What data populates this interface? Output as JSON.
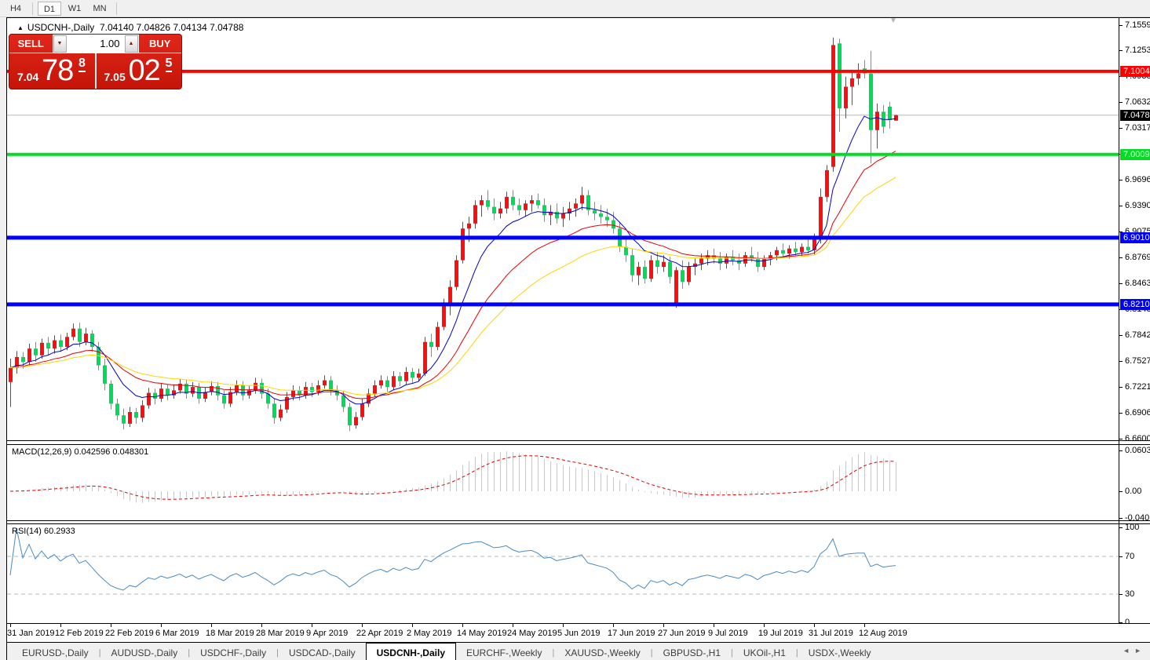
{
  "toolbar": {
    "timeframes": [
      {
        "label": "H4",
        "active": false
      },
      {
        "label": "D1",
        "active": true
      },
      {
        "label": "W1",
        "active": false
      },
      {
        "label": "MN",
        "active": false
      }
    ]
  },
  "chart": {
    "expand_icon": "▲",
    "symbol_title": "USDCNH-,Daily",
    "ohlc_text": "7.04140 7.04826 7.04134 7.04788",
    "scroll_marker": "▼",
    "quote": {
      "sell_label": "SELL",
      "buy_label": "BUY",
      "volume_value": "1.00",
      "spin_down_icon": "▼",
      "spin_up_icon": "▲",
      "sell_price_small": "7.04",
      "sell_price_big": "78",
      "sell_price_sup": "8",
      "buy_price_small": "7.05",
      "buy_price_big": "02",
      "buy_price_sup": "5"
    }
  },
  "indicators": {
    "macd_label": "MACD(12,26,9) 0.042596 0.048301",
    "rsi_label": "RSI(14) 60.2933"
  },
  "chart_data": {
    "type": "candlestick",
    "symbol": "USDCNH",
    "timeframe": "Daily",
    "y_range": {
      "top": 7.1559,
      "bottom": 6.66
    },
    "bull_color": "#fd0e0e",
    "bear_color": "#00dc5a",
    "current_price": 7.04788,
    "current_price_line_color": "#b8b8b8",
    "price_axis_ticks": [
      "7.15590",
      "7.12530",
      "7.09380",
      "7.06320",
      "7.03170",
      "7.00110",
      "6.96960",
      "6.93900",
      "6.90750",
      "6.87690",
      "6.84630",
      "6.81480",
      "6.78420",
      "6.75270",
      "6.72210",
      "6.69060",
      "6.66000"
    ],
    "price_badges": [
      {
        "value": 7.10044,
        "text": "7.10044",
        "bg": "#ff0000",
        "fg": "#ffffff"
      },
      {
        "value": 7.04788,
        "text": "7.04788",
        "bg": "#000000",
        "fg": "#ffffff"
      },
      {
        "value": 7.00092,
        "text": "7.00092",
        "bg": "#00dd22",
        "fg": "#ffffff"
      },
      {
        "value": 6.901,
        "text": "6.90100",
        "bg": "#0000ff",
        "fg": "#ffffff"
      },
      {
        "value": 6.82103,
        "text": "6.82103",
        "bg": "#0000ff",
        "fg": "#ffffff"
      }
    ],
    "levels": [
      {
        "price": 7.10044,
        "color": "#ff0000",
        "width": 4
      },
      {
        "price": 7.00092,
        "color": "#00dd22",
        "width": 4
      },
      {
        "price": 6.901,
        "color": "#0000ff",
        "width": 5
      },
      {
        "price": 6.82103,
        "color": "#0000ff",
        "width": 5
      }
    ],
    "moving_averages": [
      {
        "period": 9,
        "color": "#0000cd"
      },
      {
        "period": 21,
        "color": "#e60000"
      },
      {
        "period": 34,
        "color": "#ffd500"
      }
    ],
    "x_labels": [
      {
        "bar": 0,
        "text": "31 Jan 2019"
      },
      {
        "bar": 8,
        "text": "12 Feb 2019"
      },
      {
        "bar": 16,
        "text": "22 Feb 2019"
      },
      {
        "bar": 24,
        "text": "6 Mar 2019"
      },
      {
        "bar": 32,
        "text": "18 Mar 2019"
      },
      {
        "bar": 40,
        "text": "28 Mar 2019"
      },
      {
        "bar": 48,
        "text": "9 Apr 2019"
      },
      {
        "bar": 56,
        "text": "22 Apr 2019"
      },
      {
        "bar": 64,
        "text": "2 May 2019"
      },
      {
        "bar": 72,
        "text": "14 May 2019"
      },
      {
        "bar": 80,
        "text": "24 May 2019"
      },
      {
        "bar": 88,
        "text": "5 Jun 2019"
      },
      {
        "bar": 96,
        "text": "17 Jun 2019"
      },
      {
        "bar": 104,
        "text": "27 Jun 2019"
      },
      {
        "bar": 112,
        "text": "9 Jul 2019"
      },
      {
        "bar": 120,
        "text": "19 Jul 2019"
      },
      {
        "bar": 128,
        "text": "31 Jul 2019"
      },
      {
        "bar": 136,
        "text": "12 Aug 2019"
      }
    ],
    "ohlc": [
      [
        6.728,
        6.756,
        6.698,
        6.745
      ],
      [
        6.745,
        6.765,
        6.738,
        6.758
      ],
      [
        6.758,
        6.764,
        6.744,
        6.752
      ],
      [
        6.752,
        6.774,
        6.748,
        6.768
      ],
      [
        6.768,
        6.776,
        6.752,
        6.76
      ],
      [
        6.76,
        6.78,
        6.756,
        6.775
      ],
      [
        6.775,
        6.782,
        6.76,
        6.768
      ],
      [
        6.768,
        6.784,
        6.762,
        6.778
      ],
      [
        6.778,
        6.785,
        6.764,
        6.77
      ],
      [
        6.77,
        6.787,
        6.766,
        6.782
      ],
      [
        6.782,
        6.798,
        6.778,
        6.792
      ],
      [
        6.792,
        6.799,
        6.77,
        6.776
      ],
      [
        6.776,
        6.793,
        6.772,
        6.786
      ],
      [
        6.786,
        6.79,
        6.764,
        6.77
      ],
      [
        6.77,
        6.776,
        6.742,
        6.748
      ],
      [
        6.748,
        6.756,
        6.718,
        6.726
      ],
      [
        6.726,
        6.73,
        6.695,
        6.702
      ],
      [
        6.702,
        6.708,
        6.682,
        6.688
      ],
      [
        6.688,
        6.696,
        6.671,
        6.678
      ],
      [
        6.678,
        6.698,
        6.674,
        6.692
      ],
      [
        6.692,
        6.697,
        6.678,
        6.685
      ],
      [
        6.685,
        6.706,
        6.68,
        6.7
      ],
      [
        6.7,
        6.721,
        6.696,
        6.715
      ],
      [
        6.715,
        6.72,
        6.701,
        6.708
      ],
      [
        6.708,
        6.726,
        6.704,
        6.72
      ],
      [
        6.72,
        6.725,
        6.706,
        6.712
      ],
      [
        6.712,
        6.724,
        6.708,
        6.718
      ],
      [
        6.718,
        6.732,
        6.714,
        6.726
      ],
      [
        6.726,
        6.731,
        6.708,
        6.714
      ],
      [
        6.714,
        6.728,
        6.71,
        6.722
      ],
      [
        6.722,
        6.727,
        6.702,
        6.708
      ],
      [
        6.708,
        6.722,
        6.704,
        6.716
      ],
      [
        6.716,
        6.729,
        6.712,
        6.723
      ],
      [
        6.723,
        6.728,
        6.706,
        6.712
      ],
      [
        6.712,
        6.718,
        6.696,
        6.702
      ],
      [
        6.702,
        6.722,
        6.698,
        6.716
      ],
      [
        6.716,
        6.73,
        6.712,
        6.724
      ],
      [
        6.724,
        6.729,
        6.706,
        6.712
      ],
      [
        6.712,
        6.724,
        6.708,
        6.718
      ],
      [
        6.718,
        6.733,
        6.714,
        6.727
      ],
      [
        6.727,
        6.732,
        6.708,
        6.714
      ],
      [
        6.714,
        6.72,
        6.696,
        6.702
      ],
      [
        6.702,
        6.708,
        6.678,
        6.685
      ],
      [
        6.685,
        6.701,
        6.681,
        6.695
      ],
      [
        6.695,
        6.716,
        6.691,
        6.71
      ],
      [
        6.71,
        6.724,
        6.706,
        6.718
      ],
      [
        6.718,
        6.723,
        6.706,
        6.712
      ],
      [
        6.712,
        6.728,
        6.708,
        6.722
      ],
      [
        6.722,
        6.727,
        6.71,
        6.716
      ],
      [
        6.716,
        6.73,
        6.712,
        6.724
      ],
      [
        6.724,
        6.736,
        6.72,
        6.73
      ],
      [
        6.73,
        6.735,
        6.712,
        6.718
      ],
      [
        6.718,
        6.724,
        6.706,
        6.712
      ],
      [
        6.712,
        6.717,
        6.692,
        6.698
      ],
      [
        6.698,
        6.703,
        6.669,
        6.676
      ],
      [
        6.676,
        6.692,
        6.672,
        6.686
      ],
      [
        6.686,
        6.708,
        6.682,
        6.702
      ],
      [
        6.702,
        6.72,
        6.698,
        6.714
      ],
      [
        6.714,
        6.73,
        6.71,
        6.724
      ],
      [
        6.724,
        6.736,
        6.72,
        6.73
      ],
      [
        6.73,
        6.735,
        6.716,
        6.722
      ],
      [
        6.722,
        6.741,
        6.718,
        6.735
      ],
      [
        6.735,
        6.74,
        6.723,
        6.729
      ],
      [
        6.729,
        6.746,
        6.725,
        6.74
      ],
      [
        6.74,
        6.745,
        6.727,
        6.733
      ],
      [
        6.733,
        6.744,
        6.729,
        6.738
      ],
      [
        6.738,
        6.782,
        6.735,
        6.776
      ],
      [
        6.776,
        6.786,
        6.758,
        6.77
      ],
      [
        6.77,
        6.8,
        6.766,
        6.794
      ],
      [
        6.794,
        6.828,
        6.79,
        6.82
      ],
      [
        6.82,
        6.85,
        6.808,
        6.842
      ],
      [
        6.842,
        6.88,
        6.838,
        6.874
      ],
      [
        6.874,
        6.92,
        6.87,
        6.912
      ],
      [
        6.912,
        6.926,
        6.896,
        6.918
      ],
      [
        6.918,
        6.946,
        6.912,
        6.94
      ],
      [
        6.94,
        6.952,
        6.926,
        6.946
      ],
      [
        6.946,
        6.958,
        6.934,
        6.938
      ],
      [
        6.938,
        6.948,
        6.922,
        6.93
      ],
      [
        6.93,
        6.944,
        6.924,
        6.936
      ],
      [
        6.936,
        6.956,
        6.93,
        6.95
      ],
      [
        6.95,
        6.958,
        6.934,
        6.94
      ],
      [
        6.94,
        6.948,
        6.928,
        6.934
      ],
      [
        6.934,
        6.946,
        6.926,
        6.942
      ],
      [
        6.942,
        6.952,
        6.932,
        6.946
      ],
      [
        6.946,
        6.954,
        6.936,
        6.94
      ],
      [
        6.94,
        6.948,
        6.92,
        6.928
      ],
      [
        6.928,
        6.94,
        6.916,
        6.932
      ],
      [
        6.932,
        6.942,
        6.918,
        6.924
      ],
      [
        6.924,
        6.938,
        6.914,
        6.93
      ],
      [
        6.93,
        6.944,
        6.922,
        6.936
      ],
      [
        6.936,
        6.948,
        6.926,
        6.942
      ],
      [
        6.942,
        6.962,
        6.934,
        6.952
      ],
      [
        6.952,
        6.958,
        6.928,
        6.934
      ],
      [
        6.934,
        6.944,
        6.922,
        6.93
      ],
      [
        6.93,
        6.94,
        6.918,
        6.926
      ],
      [
        6.926,
        6.936,
        6.914,
        6.922
      ],
      [
        6.922,
        6.932,
        6.906,
        6.912
      ],
      [
        6.912,
        6.92,
        6.884,
        6.89
      ],
      [
        6.89,
        6.902,
        6.872,
        6.88
      ],
      [
        6.88,
        6.888,
        6.848,
        6.856
      ],
      [
        6.856,
        6.872,
        6.844,
        6.866
      ],
      [
        6.866,
        6.874,
        6.846,
        6.852
      ],
      [
        6.852,
        6.88,
        6.848,
        6.874
      ],
      [
        6.874,
        6.884,
        6.858,
        6.866
      ],
      [
        6.866,
        6.88,
        6.86,
        6.872
      ],
      [
        6.872,
        6.878,
        6.846,
        6.854
      ],
      [
        6.822,
        6.866,
        6.817,
        6.862
      ],
      [
        6.862,
        6.874,
        6.84,
        6.848
      ],
      [
        6.848,
        6.872,
        6.844,
        6.866
      ],
      [
        6.866,
        6.876,
        6.856,
        6.87
      ],
      [
        6.87,
        6.882,
        6.862,
        6.876
      ],
      [
        6.876,
        6.886,
        6.868,
        6.88
      ],
      [
        6.88,
        6.888,
        6.87,
        6.876
      ],
      [
        6.876,
        6.884,
        6.862,
        6.87
      ],
      [
        6.87,
        6.882,
        6.864,
        6.878
      ],
      [
        6.878,
        6.886,
        6.868,
        6.874
      ],
      [
        6.874,
        6.882,
        6.862,
        6.87
      ],
      [
        6.87,
        6.884,
        6.866,
        6.88
      ],
      [
        6.88,
        6.89,
        6.872,
        6.876
      ],
      [
        6.876,
        6.884,
        6.86,
        6.866
      ],
      [
        6.866,
        6.88,
        6.862,
        6.876
      ],
      [
        6.876,
        6.884,
        6.868,
        6.88
      ],
      [
        6.88,
        6.89,
        6.874,
        6.886
      ],
      [
        6.886,
        6.894,
        6.878,
        6.882
      ],
      [
        6.882,
        6.892,
        6.876,
        6.888
      ],
      [
        6.888,
        6.896,
        6.88,
        6.884
      ],
      [
        6.884,
        6.894,
        6.878,
        6.89
      ],
      [
        6.89,
        6.9,
        6.882,
        6.886
      ],
      [
        6.886,
        6.906,
        6.88,
        6.9
      ],
      [
        6.9,
        6.96,
        6.894,
        6.95
      ],
      [
        6.95,
        6.988,
        6.944,
        6.982
      ],
      [
        6.986,
        7.141,
        6.98,
        7.132
      ],
      [
        7.134,
        7.1395,
        7.028,
        7.056
      ],
      [
        7.056,
        7.094,
        7.044,
        7.082
      ],
      [
        7.082,
        7.099,
        7.06,
        7.092
      ],
      [
        7.092,
        7.11,
        7.084,
        7.098
      ],
      [
        7.104,
        7.114,
        7.092,
        7.098
      ],
      [
        7.098,
        7.125,
        6.99,
        7.03
      ],
      [
        7.03,
        7.062,
        7.008,
        7.052
      ],
      [
        7.052,
        7.06,
        7.026,
        7.034
      ],
      [
        7.058,
        7.064,
        7.032,
        7.042
      ],
      [
        7.0414,
        7.0483,
        7.0413,
        7.0479
      ]
    ],
    "macd": {
      "params": [
        12,
        26,
        9
      ],
      "main": 0.042596,
      "signal": 0.048301,
      "hist_color": "#c9c9c9",
      "signal_color": "#e60000",
      "axis_ticks": [
        {
          "v": 0.060343,
          "t": "0.060343"
        },
        {
          "v": 0,
          "t": "0.00"
        },
        {
          "v": -0.040136,
          "t": "-0.040136"
        }
      ]
    },
    "rsi": {
      "period": 14,
      "value": 60.2933,
      "color": "#4a8bc2",
      "level_lines": [
        70,
        30
      ],
      "axis_ticks": [
        {
          "v": 100,
          "t": "100"
        },
        {
          "v": 70,
          "t": "70"
        },
        {
          "v": 30,
          "t": "30"
        },
        {
          "v": 0,
          "t": "0"
        }
      ]
    }
  },
  "tabs": {
    "items": [
      {
        "label": "EURUSD-,Daily",
        "active": false
      },
      {
        "label": "AUDUSD-,Daily",
        "active": false
      },
      {
        "label": "USDCHF-,Daily",
        "active": false
      },
      {
        "label": "USDCAD-,Daily",
        "active": false
      },
      {
        "label": "USDCNH-,Daily",
        "active": true
      },
      {
        "label": "EURCHF-,Weekly",
        "active": false
      },
      {
        "label": "XAUUSD-,Weekly",
        "active": false
      },
      {
        "label": "GBPUSD-,H1",
        "active": false
      },
      {
        "label": "UKOil-,H1",
        "active": false
      },
      {
        "label": "USDX-,Weekly",
        "active": false
      }
    ],
    "nav_left": "◄",
    "nav_right": "►"
  }
}
